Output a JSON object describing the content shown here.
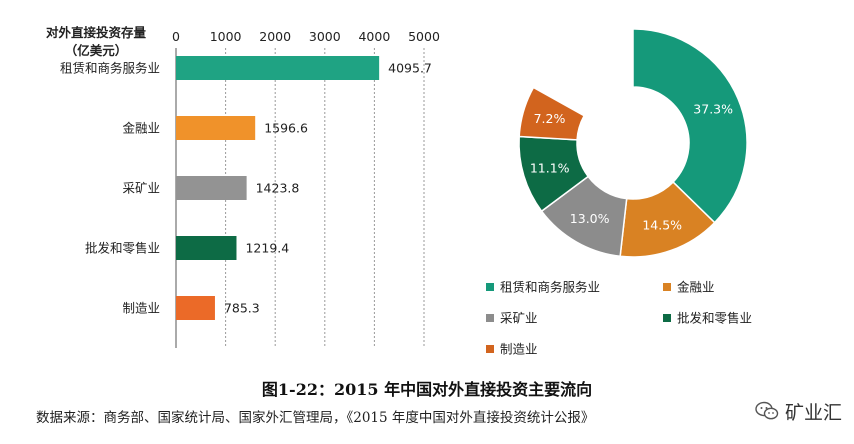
{
  "chart_data": [
    {
      "type": "bar",
      "orientation": "horizontal",
      "title": "对外直接投资存量\n（亿美元）",
      "categories": [
        "租赁和商务服务业",
        "金融业",
        "采矿业",
        "批发和零售业",
        "制造业"
      ],
      "values": [
        4095.7,
        1596.6,
        1423.8,
        1219.4,
        785.3
      ],
      "value_labels": [
        "4095.7",
        "1596.6",
        "1423.8",
        "1219.4",
        "785.3"
      ],
      "colors": [
        "#1fa383",
        "#f0922a",
        "#939393",
        "#0d6b45",
        "#eb6a28"
      ],
      "xlim": [
        0,
        5000
      ],
      "xticks": [
        0,
        1000,
        2000,
        3000,
        4000,
        5000
      ],
      "xtick_labels": [
        "0",
        "1000",
        "2000",
        "3000",
        "4000",
        "5000"
      ],
      "grid": true,
      "xaxis_position": "top"
    },
    {
      "type": "pie",
      "style": "donut",
      "categories": [
        "租赁和商务服务业",
        "金融业",
        "采矿业",
        "批发和零售业",
        "制造业"
      ],
      "values": [
        37.3,
        14.5,
        13.0,
        11.1,
        7.2
      ],
      "labels": [
        "37.3%",
        "14.5%",
        "13.0%",
        "11.1%",
        "7.2%"
      ],
      "colors": [
        "#15997a",
        "#d98223",
        "#8c8c8c",
        "#0d6b45",
        "#d2641e"
      ],
      "legend_placement": "bottom"
    }
  ],
  "caption": "图1-22：2015 年中国对外直接投资主要流向",
  "source": "数据来源：商务部、国家统计局、国家外汇管理局，《2015 年度中国对外直接投资统计公报》",
  "watermark": "矿业汇",
  "watermark_icon": "wechat-icon"
}
